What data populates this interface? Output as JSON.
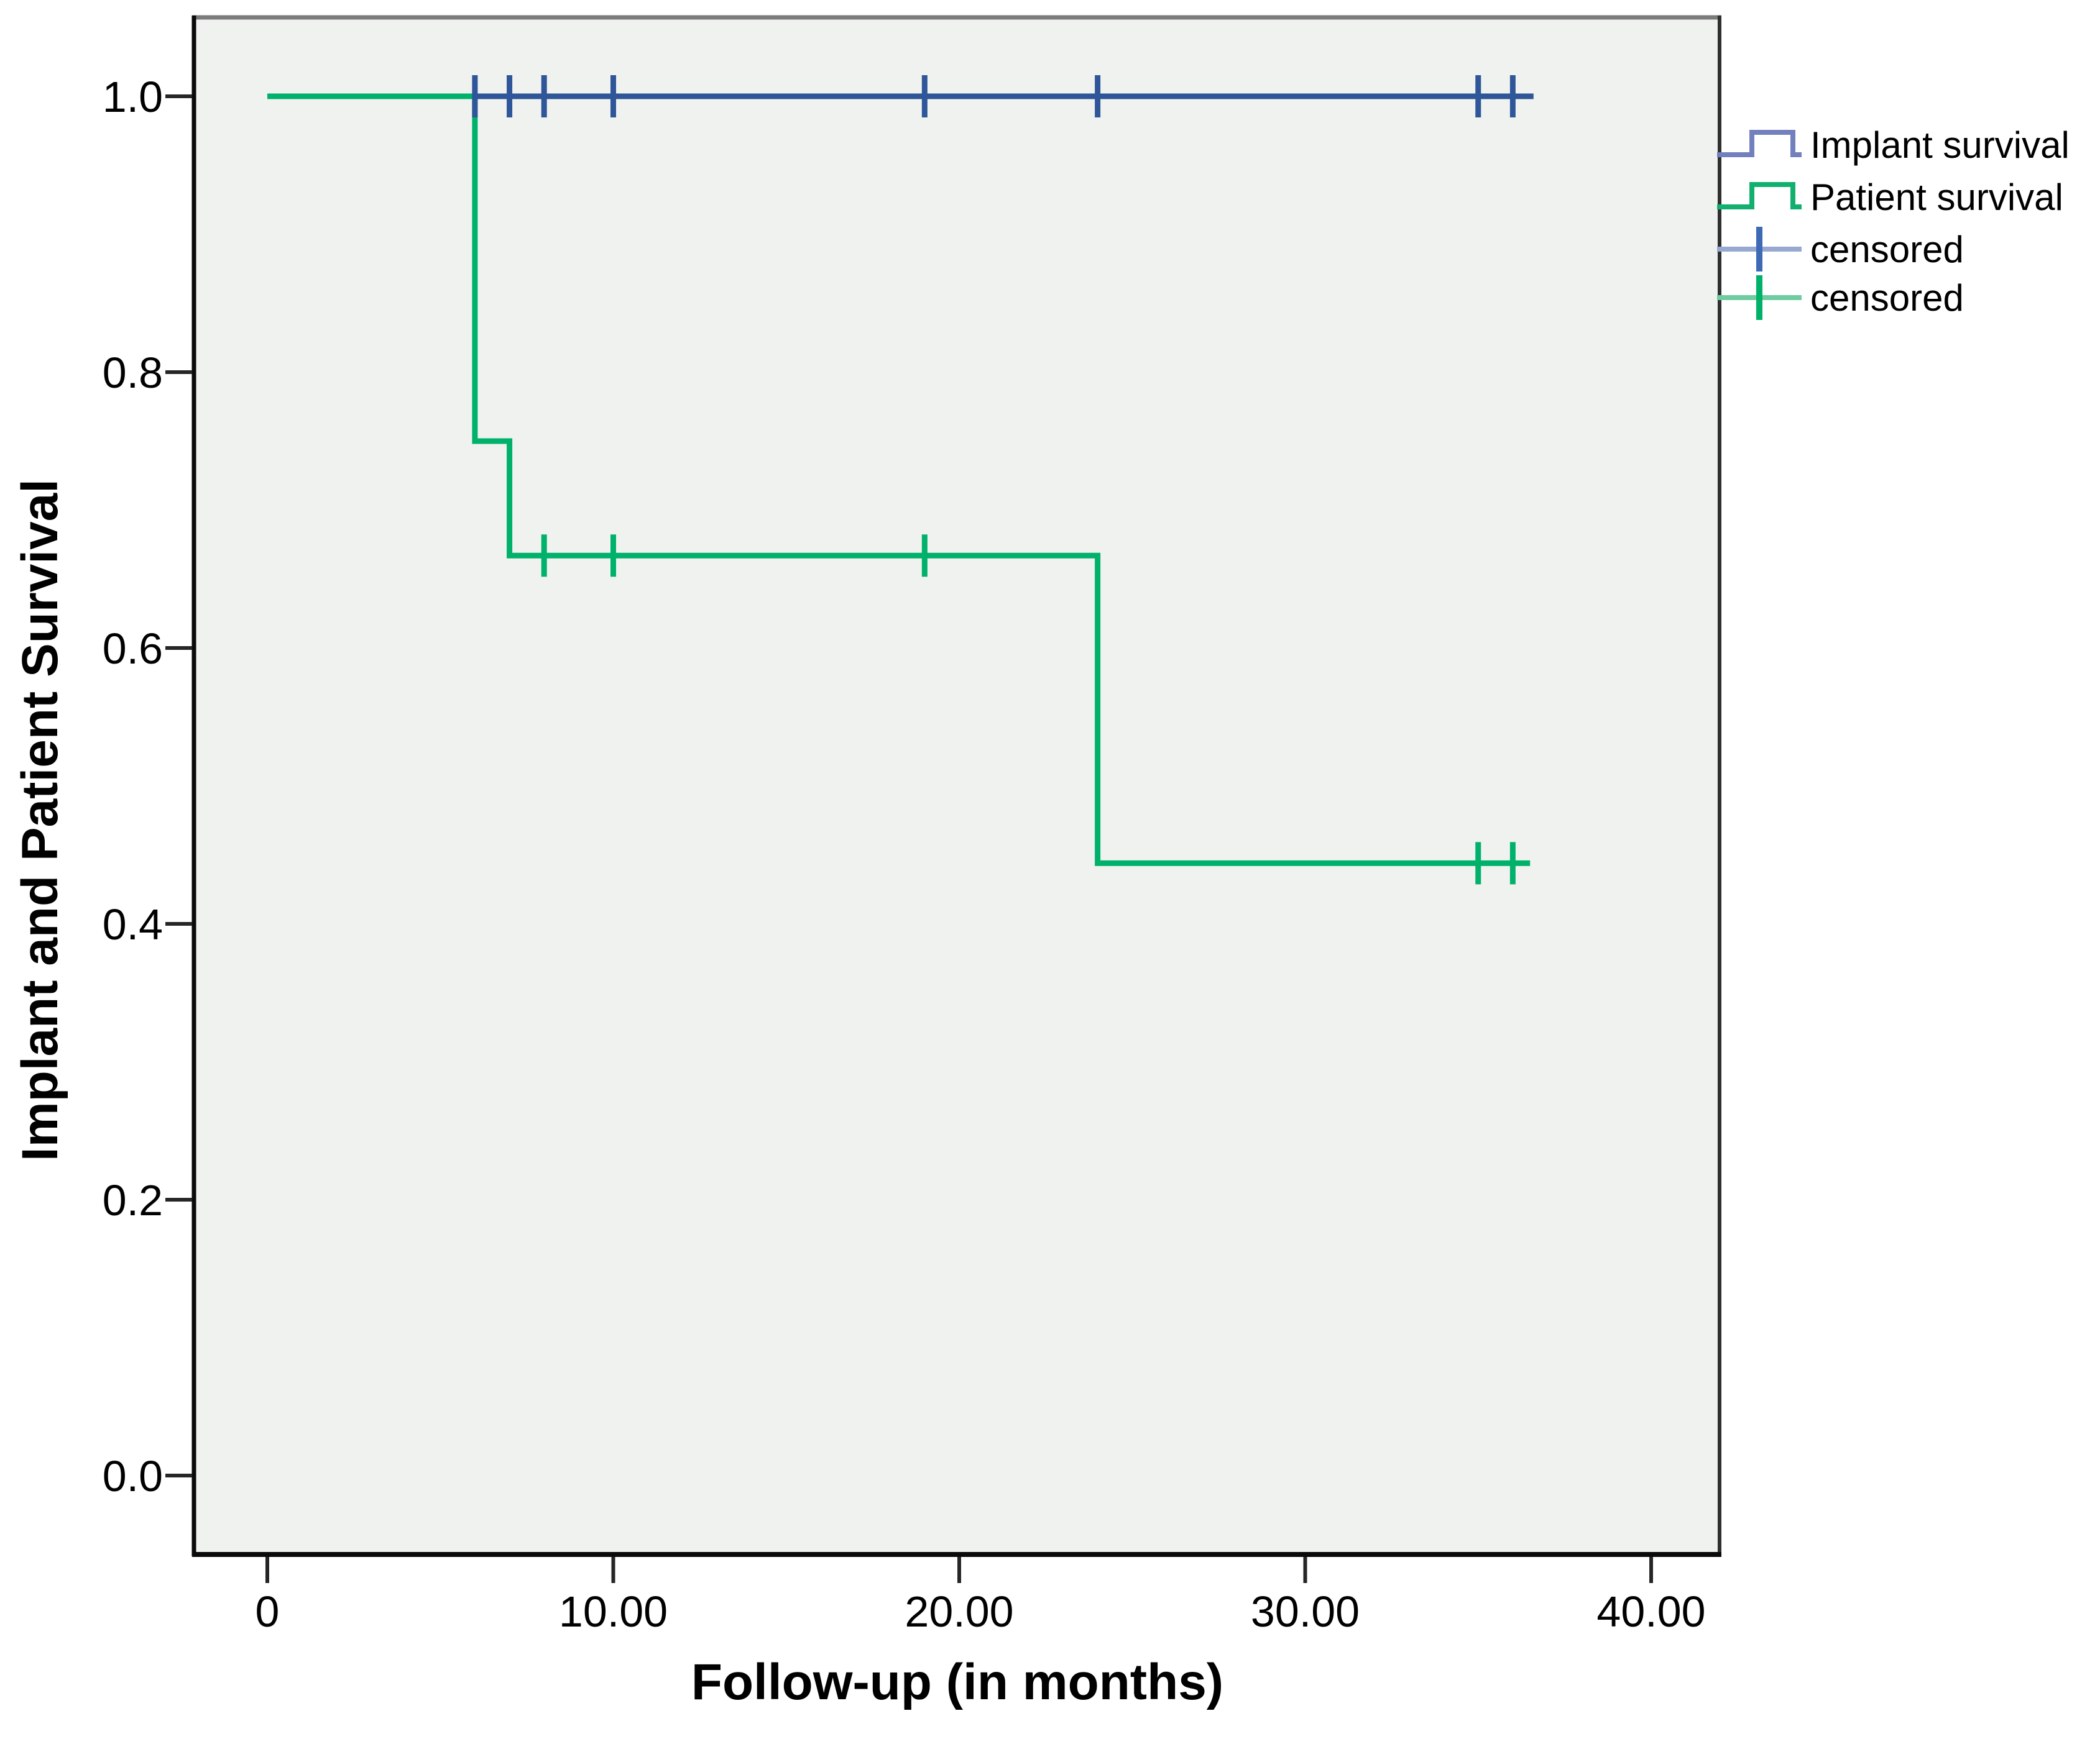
{
  "figure": {
    "background": "#ffffff",
    "plot_background": "#EFF2EF"
  },
  "chart_data": {
    "type": "line",
    "subtype": "kaplan-meier-step",
    "title": "",
    "xlabel": "Follow-up (in months)",
    "ylabel": "Implant and Patient Survival",
    "xlim": [
      -2.2,
      42.2
    ],
    "ylim": [
      -0.057,
      1.057
    ],
    "grid": false,
    "legend_position": "right-top-outside",
    "x_ticks": [
      {
        "value": 0,
        "label": "0"
      },
      {
        "value": 10,
        "label": "10.00"
      },
      {
        "value": 20,
        "label": "20.00"
      },
      {
        "value": 30,
        "label": "30.00"
      },
      {
        "value": 40,
        "label": "40.00"
      }
    ],
    "y_ticks": [
      {
        "value": 0.0,
        "label": "0.0"
      },
      {
        "value": 0.2,
        "label": "0.2"
      },
      {
        "value": 0.4,
        "label": "0.4"
      },
      {
        "value": 0.6,
        "label": "0.6"
      },
      {
        "value": 0.8,
        "label": "0.8"
      },
      {
        "value": 1.0,
        "label": "1.0"
      }
    ],
    "series": [
      {
        "name": "Implant survival",
        "color": "#2F5699",
        "steps": [
          [
            0,
            1.0
          ],
          [
            36.6,
            1.0
          ]
        ],
        "censored": [
          [
            6,
            1.0
          ],
          [
            7,
            1.0
          ],
          [
            8,
            1.0
          ],
          [
            10,
            1.0
          ],
          [
            19,
            1.0
          ],
          [
            24,
            1.0
          ],
          [
            35,
            1.0
          ],
          [
            36,
            1.0
          ]
        ]
      },
      {
        "name": "Patient survival",
        "color": "#00B16B",
        "steps": [
          [
            0,
            1.0
          ],
          [
            6,
            1.0
          ],
          [
            6,
            0.75
          ],
          [
            7,
            0.75
          ],
          [
            7,
            0.667
          ],
          [
            24,
            0.667
          ],
          [
            24,
            0.444
          ],
          [
            36.5,
            0.444
          ]
        ],
        "censored": [
          [
            8,
            0.667
          ],
          [
            10,
            0.667
          ],
          [
            19,
            0.667
          ],
          [
            35,
            0.444
          ],
          [
            36,
            0.444
          ]
        ]
      }
    ],
    "legend": [
      {
        "label": "Implant survival",
        "symbol": "step",
        "color": "#7280BE"
      },
      {
        "label": "Patient survival",
        "symbol": "step",
        "color": "#12B06F"
      },
      {
        "label": "censored",
        "symbol": "plus",
        "color": "#3E69B5",
        "line_color": "#97A8D1"
      },
      {
        "label": "censored",
        "symbol": "plus",
        "color": "#00B169",
        "line_color": "#6FCBA0"
      }
    ]
  }
}
